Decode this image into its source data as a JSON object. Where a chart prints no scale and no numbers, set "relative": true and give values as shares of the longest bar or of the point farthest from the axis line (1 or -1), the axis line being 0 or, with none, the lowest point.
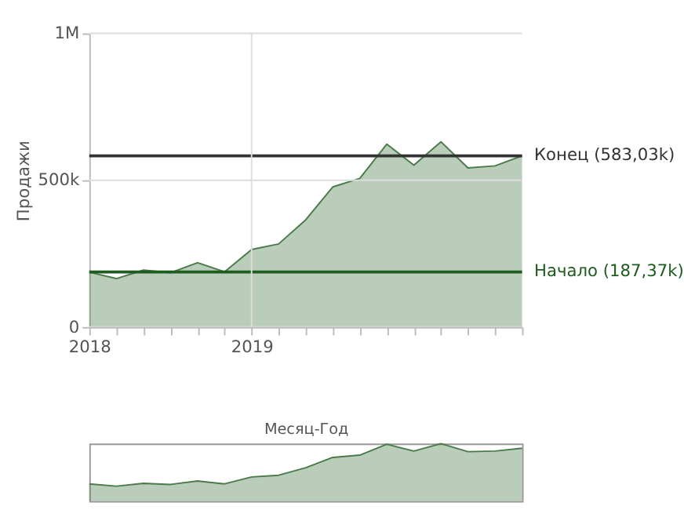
{
  "chart_data": [
    {
      "type": "area",
      "xlabel": "Месяц-Год",
      "ylabel": "Продажи",
      "categories": [
        "2018",
        null,
        null,
        null,
        null,
        null,
        "2019",
        null,
        null,
        null,
        null,
        null,
        null,
        null,
        null,
        null,
        null
      ],
      "series": [
        {
          "color": "#4a7a4a",
          "values": [
            187000,
            165000,
            194000,
            185000,
            219000,
            188000,
            264000,
            283000,
            365000,
            477000,
            506000,
            623000,
            551000,
            631000,
            542000,
            549000,
            583000
          ]
        }
      ],
      "ylim": [
        0,
        1000000
      ],
      "yticks": [
        {
          "value": 0,
          "label": "0"
        },
        {
          "value": 500000,
          "label": "500k"
        },
        {
          "value": 1000000,
          "label": "1M"
        }
      ],
      "ref_lines": [
        {
          "axis": "y",
          "value": 583030,
          "label": "Конец (583,03k)",
          "color": "#333333"
        },
        {
          "axis": "y",
          "value": 187370,
          "label": "Начало (187,37k)",
          "color": "#1f5c1f"
        },
        {
          "axis": "x",
          "value": "2019",
          "color": "#dddddd"
        }
      ],
      "grid": "y"
    },
    {
      "type": "area",
      "relative": true,
      "tick_labels": false,
      "categories": [
        null,
        null,
        null,
        null,
        null,
        null,
        null,
        null,
        null,
        null,
        null,
        null,
        null,
        null,
        null,
        null,
        null
      ],
      "series": [
        {
          "color": "#4a7a4a",
          "values": [
            0.3,
            0.26,
            0.31,
            0.29,
            0.35,
            0.3,
            0.42,
            0.45,
            0.58,
            0.76,
            0.8,
            0.99,
            0.87,
            1,
            0.86,
            0.87,
            0.92
          ]
        }
      ]
    }
  ]
}
